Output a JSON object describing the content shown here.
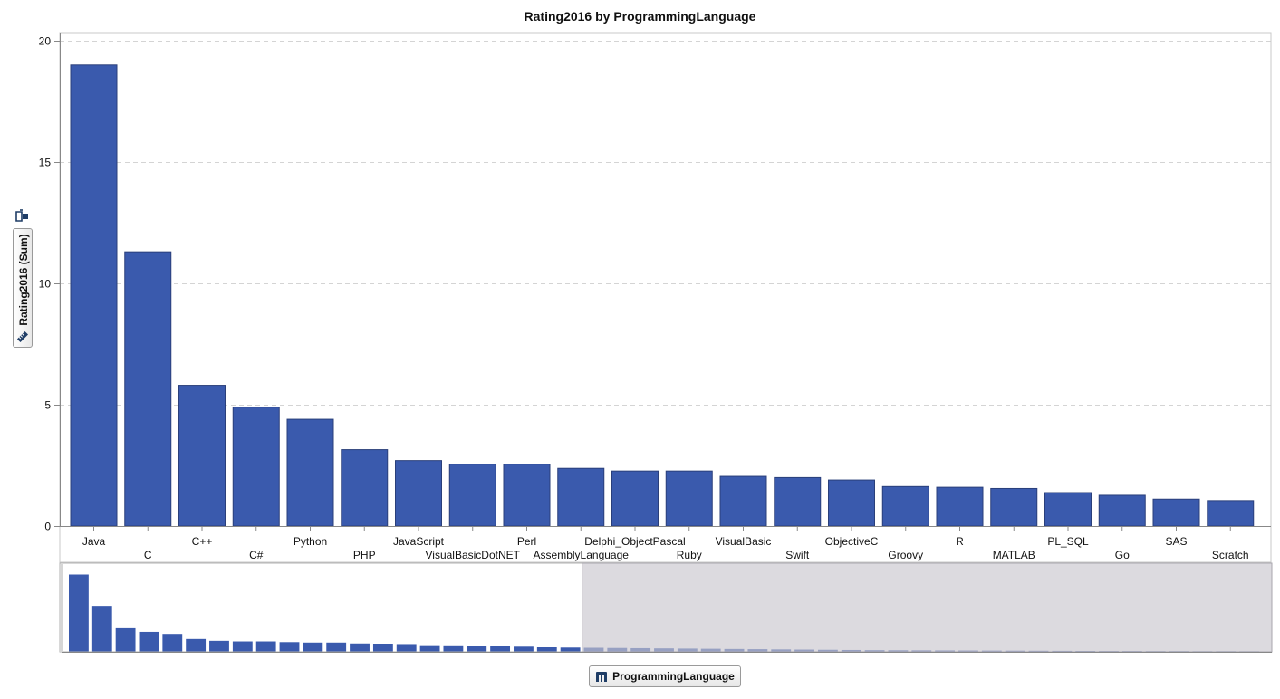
{
  "chart_data": {
    "type": "bar",
    "title": "Rating2016 by ProgrammingLanguage",
    "xlabel": "ProgrammingLanguage",
    "ylabel": "Rating2016 (Sum)",
    "ylim": [
      0,
      20
    ],
    "yticks": [
      0,
      5,
      10,
      15,
      20
    ],
    "grid": true,
    "bar_color": "#3a5aad",
    "categories": [
      "Java",
      "C",
      "C++",
      "C#",
      "Python",
      "PHP",
      "JavaScript",
      "VisualBasicDotNET",
      "Perl",
      "AssemblyLanguage",
      "Delphi_ObjectPascal",
      "Ruby",
      "VisualBasic",
      "Swift",
      "ObjectiveC",
      "Groovy",
      "R",
      "MATLAB",
      "PL_SQL",
      "Go",
      "SAS",
      "Scratch"
    ],
    "values": [
      19.0,
      11.3,
      5.8,
      4.9,
      4.4,
      3.15,
      2.7,
      2.55,
      2.55,
      2.38,
      2.27,
      2.27,
      2.05,
      2.0,
      1.9,
      1.63,
      1.6,
      1.55,
      1.38,
      1.27,
      1.11,
      1.05
    ],
    "overview_values": [
      19.0,
      11.3,
      5.8,
      4.9,
      4.4,
      3.15,
      2.7,
      2.55,
      2.55,
      2.38,
      2.27,
      2.27,
      2.05,
      2.0,
      1.9,
      1.63,
      1.6,
      1.55,
      1.38,
      1.27,
      1.11,
      1.05,
      1.0,
      0.95,
      0.9,
      0.85,
      0.8,
      0.75,
      0.7,
      0.65,
      0.6,
      0.55,
      0.5,
      0.45,
      0.4,
      0.38,
      0.36,
      0.34,
      0.32,
      0.3,
      0.28,
      0.26,
      0.24,
      0.22,
      0.2,
      0.2,
      0.18,
      0.18,
      0.16,
      0.16,
      0.15
    ],
    "overview_visible_count": 22
  }
}
